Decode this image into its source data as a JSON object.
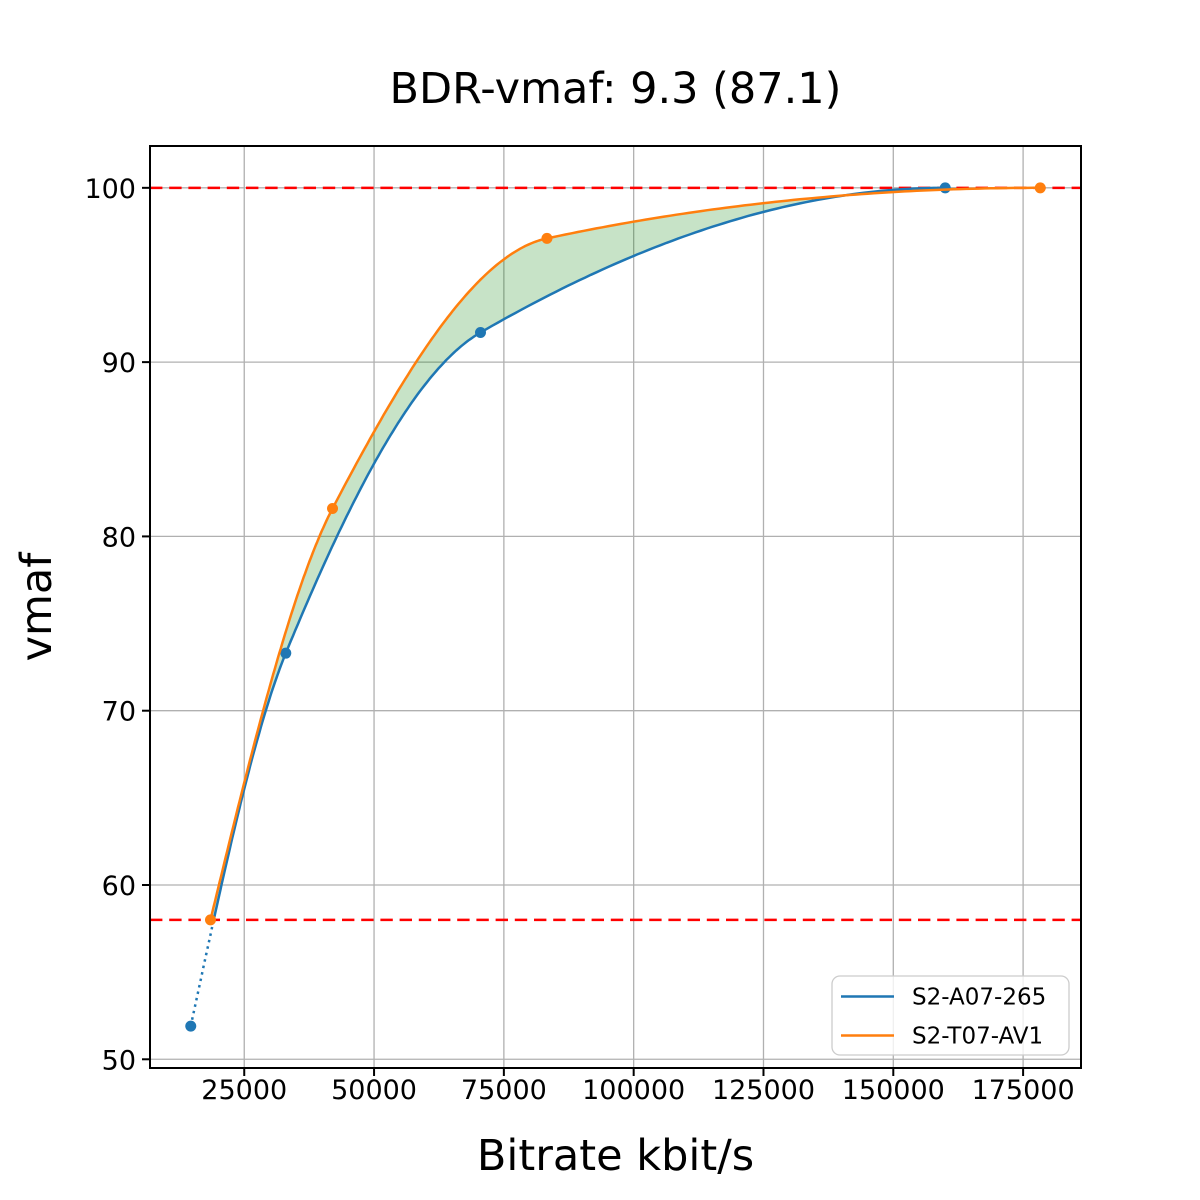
{
  "chart_data": {
    "type": "line",
    "title": "BDR-vmaf: 9.3 (87.1)",
    "xlabel": "Bitrate kbit/s",
    "ylabel": "vmaf",
    "xlim": [
      6850,
      186150
    ],
    "ylim": [
      49.5,
      102.4
    ],
    "xticks": [
      25000,
      50000,
      75000,
      100000,
      125000,
      150000,
      175000
    ],
    "xtick_labels": [
      "25000",
      "50000",
      "75000",
      "100000",
      "125000",
      "150000",
      "175000"
    ],
    "yticks": [
      50,
      60,
      70,
      80,
      90,
      100
    ],
    "ytick_labels": [
      "50",
      "60",
      "70",
      "80",
      "90",
      "100"
    ],
    "grid": true,
    "grid_color": "#b0b0b0",
    "legend": {
      "position": "lower right",
      "entries": [
        "S2-A07-265",
        "S2-T07-AV1"
      ]
    },
    "series": [
      {
        "name": "S2-A07-265",
        "color": "#1f77b4",
        "marker": "circle",
        "x": [
          14700,
          33000,
          70500,
          160000
        ],
        "y": [
          51.9,
          73.3,
          91.7,
          100.0
        ],
        "dotted_below_vmaf": 58
      },
      {
        "name": "S2-T07-AV1",
        "color": "#ff7f0e",
        "marker": "circle",
        "x": [
          18500,
          42000,
          83300,
          178300
        ],
        "y": [
          58.0,
          81.6,
          97.1,
          100.0
        ]
      }
    ],
    "hlines": {
      "values": [
        58,
        100
      ],
      "color": "#ff0000",
      "style": "dashed"
    },
    "fill_between": {
      "color": "#008000",
      "opacity": 0.22,
      "vmaf_range": [
        58,
        100
      ]
    }
  }
}
